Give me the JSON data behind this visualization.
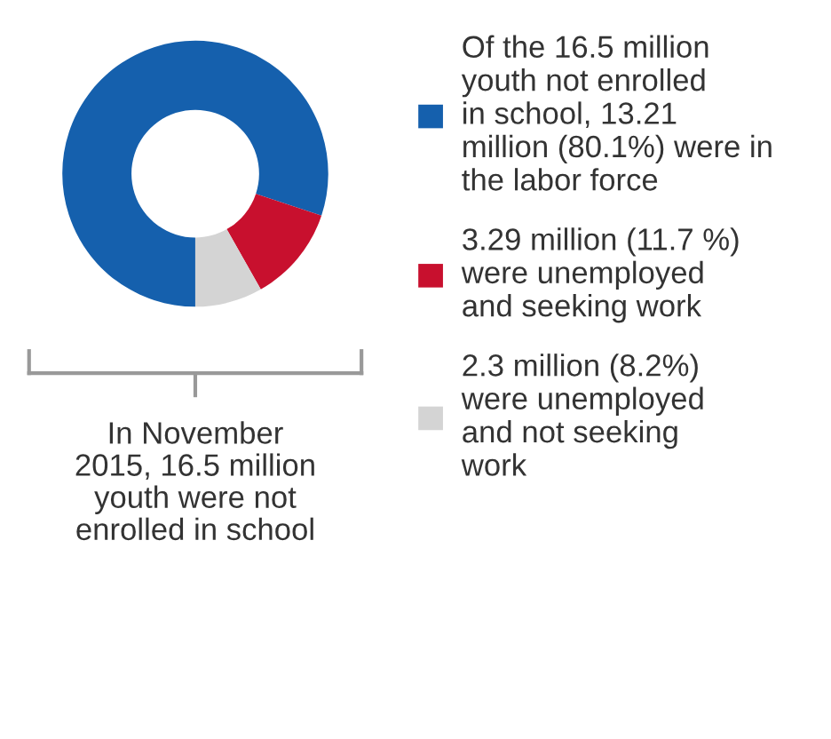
{
  "chart_data": {
    "type": "donut",
    "categories": [
      "Of the 16.5 million\nyouth not enrolled\nin school, 13.21\nmillion (80.1%) were in\nthe labor force",
      "3.29 million (11.7 %)\nwere unemployed\nand seeking work",
      "2.3 million (8.2%)\nwere unemployed\nand not seeking\nwork"
    ],
    "values": [
      80.1,
      11.7,
      8.2
    ],
    "colors": [
      "#1560ad",
      "#c8102e",
      "#d4d4d4"
    ],
    "legend": "right",
    "annotations": [
      "In November\n2015, 16.5 million\nyouth were not\nenrolled in school"
    ]
  }
}
